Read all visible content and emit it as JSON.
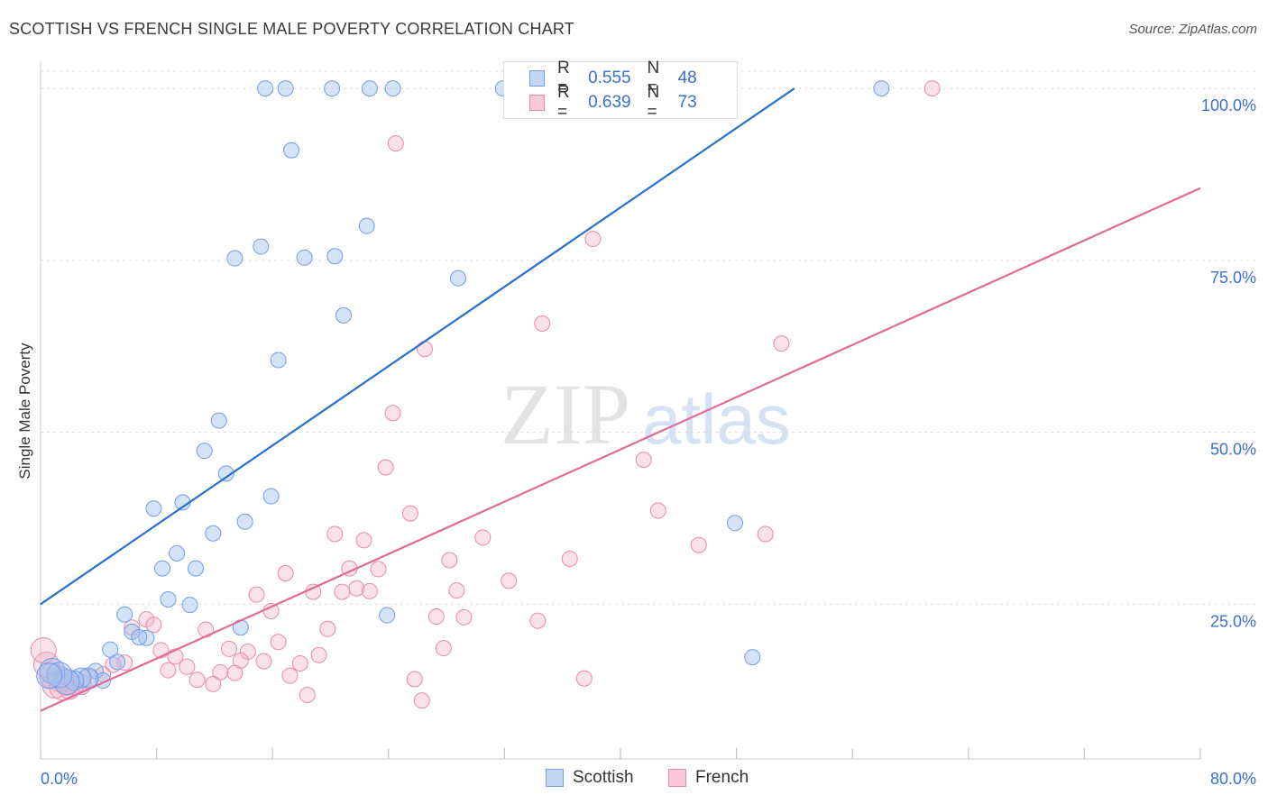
{
  "title": "SCOTTISH VS FRENCH SINGLE MALE POVERTY CORRELATION CHART",
  "source": "Source: ZipAtlas.com",
  "watermark": {
    "zip": "ZIP",
    "atlas": "atlas"
  },
  "legend": {
    "scottish": {
      "r_label": "R =",
      "r": "0.555",
      "n_label": "N =",
      "n": "48",
      "color": "#6f9ee8"
    },
    "french": {
      "r_label": "R =",
      "r": "0.639",
      "n_label": "N =",
      "n": "73",
      "color": "#e889a8"
    }
  },
  "bottom_legend": {
    "scottish": "Scottish",
    "french": "French"
  },
  "chart_data": {
    "type": "scatter",
    "title": "SCOTTISH VS FRENCH SINGLE MALE POVERTY CORRELATION CHART",
    "xlabel": "",
    "ylabel": "Single Male Poverty",
    "xlim": [
      0,
      80
    ],
    "ylim": [
      2.5,
      102.5
    ],
    "x_tick_labels": [
      "0.0%",
      "80.0%"
    ],
    "y_tick_labels": [
      "25.0%",
      "50.0%",
      "75.0%",
      "100.0%"
    ],
    "y_ticks": [
      25,
      50,
      75,
      100
    ],
    "grid": true,
    "legend_position": "top-center",
    "series": [
      {
        "name": "Scottish",
        "color": "#6f9ee8",
        "trend": {
          "x": [
            0,
            52
          ],
          "y": [
            25,
            100
          ]
        },
        "points": [
          {
            "x": 15.5,
            "y": 100
          },
          {
            "x": 16.9,
            "y": 100
          },
          {
            "x": 20.1,
            "y": 100
          },
          {
            "x": 22.7,
            "y": 100
          },
          {
            "x": 24.3,
            "y": 100
          },
          {
            "x": 31.9,
            "y": 100
          },
          {
            "x": 58.0,
            "y": 100
          },
          {
            "x": 17.3,
            "y": 91
          },
          {
            "x": 22.5,
            "y": 80
          },
          {
            "x": 15.2,
            "y": 77
          },
          {
            "x": 13.4,
            "y": 75.3
          },
          {
            "x": 18.2,
            "y": 75.4
          },
          {
            "x": 20.3,
            "y": 75.6
          },
          {
            "x": 28.8,
            "y": 72.4
          },
          {
            "x": 20.9,
            "y": 67
          },
          {
            "x": 16.4,
            "y": 60.5
          },
          {
            "x": 12.3,
            "y": 51.7
          },
          {
            "x": 11.3,
            "y": 47.3
          },
          {
            "x": 12.8,
            "y": 44
          },
          {
            "x": 9.8,
            "y": 39.8
          },
          {
            "x": 7.8,
            "y": 38.9
          },
          {
            "x": 15.9,
            "y": 40.7
          },
          {
            "x": 14.1,
            "y": 37
          },
          {
            "x": 11.9,
            "y": 35.3
          },
          {
            "x": 9.4,
            "y": 32.4
          },
          {
            "x": 8.4,
            "y": 30.2
          },
          {
            "x": 10.7,
            "y": 30.2
          },
          {
            "x": 8.8,
            "y": 25.7
          },
          {
            "x": 10.3,
            "y": 24.9
          },
          {
            "x": 5.8,
            "y": 23.5
          },
          {
            "x": 23.9,
            "y": 23.4
          },
          {
            "x": 13.8,
            "y": 21.6
          },
          {
            "x": 6.3,
            "y": 21
          },
          {
            "x": 7.3,
            "y": 20.1
          },
          {
            "x": 6.8,
            "y": 20.2
          },
          {
            "x": 4.8,
            "y": 18.4
          },
          {
            "x": 5.3,
            "y": 16.6
          },
          {
            "x": 47.9,
            "y": 36.8
          },
          {
            "x": 49.1,
            "y": 17.3
          },
          {
            "x": 3.8,
            "y": 15.3
          },
          {
            "x": 4.3,
            "y": 13.9
          },
          {
            "x": 3.3,
            "y": 14.3
          },
          {
            "x": 2.8,
            "y": 14.3
          },
          {
            "x": 2.3,
            "y": 13.9
          },
          {
            "x": 1.8,
            "y": 13.7
          },
          {
            "x": 0.8,
            "y": 15.3
          },
          {
            "x": 1.3,
            "y": 14.7
          },
          {
            "x": 0.6,
            "y": 14.6
          }
        ]
      },
      {
        "name": "French",
        "color": "#e889a8",
        "trend": {
          "x": [
            0,
            80
          ],
          "y": [
            9.5,
            85.5
          ]
        },
        "points": [
          {
            "x": 33.8,
            "y": 100
          },
          {
            "x": 61.5,
            "y": 100
          },
          {
            "x": 24.5,
            "y": 92
          },
          {
            "x": 38.1,
            "y": 78.1
          },
          {
            "x": 34.6,
            "y": 65.8
          },
          {
            "x": 51.1,
            "y": 62.9
          },
          {
            "x": 26.5,
            "y": 62.1
          },
          {
            "x": 24.3,
            "y": 52.8
          },
          {
            "x": 41.6,
            "y": 46
          },
          {
            "x": 23.8,
            "y": 44.9
          },
          {
            "x": 25.5,
            "y": 38.2
          },
          {
            "x": 42.6,
            "y": 38.6
          },
          {
            "x": 20.3,
            "y": 35.2
          },
          {
            "x": 22.3,
            "y": 34.3
          },
          {
            "x": 30.5,
            "y": 34.7
          },
          {
            "x": 45.4,
            "y": 33.6
          },
          {
            "x": 50.0,
            "y": 35.2
          },
          {
            "x": 28.2,
            "y": 31.4
          },
          {
            "x": 36.5,
            "y": 31.6
          },
          {
            "x": 21.3,
            "y": 30.2
          },
          {
            "x": 23.3,
            "y": 30.1
          },
          {
            "x": 16.9,
            "y": 29.5
          },
          {
            "x": 32.3,
            "y": 28.4
          },
          {
            "x": 18.8,
            "y": 26.8
          },
          {
            "x": 20.8,
            "y": 26.8
          },
          {
            "x": 21.8,
            "y": 27.3
          },
          {
            "x": 22.7,
            "y": 26.9
          },
          {
            "x": 28.7,
            "y": 27
          },
          {
            "x": 14.9,
            "y": 26.4
          },
          {
            "x": 15.9,
            "y": 24
          },
          {
            "x": 27.3,
            "y": 23.2
          },
          {
            "x": 29.2,
            "y": 23.1
          },
          {
            "x": 34.3,
            "y": 22.6
          },
          {
            "x": 7.3,
            "y": 22.8
          },
          {
            "x": 7.8,
            "y": 22
          },
          {
            "x": 11.4,
            "y": 21.3
          },
          {
            "x": 19.8,
            "y": 21.4
          },
          {
            "x": 6.3,
            "y": 21.6
          },
          {
            "x": 16.4,
            "y": 19.5
          },
          {
            "x": 13.0,
            "y": 18.5
          },
          {
            "x": 14.3,
            "y": 18.1
          },
          {
            "x": 8.3,
            "y": 18.3
          },
          {
            "x": 27.8,
            "y": 18.6
          },
          {
            "x": 19.2,
            "y": 17.6
          },
          {
            "x": 9.3,
            "y": 17.4
          },
          {
            "x": 13.8,
            "y": 16.8
          },
          {
            "x": 15.4,
            "y": 16.7
          },
          {
            "x": 17.9,
            "y": 16.4
          },
          {
            "x": 5.8,
            "y": 16.5
          },
          {
            "x": 5.0,
            "y": 16.2
          },
          {
            "x": 10.1,
            "y": 15.9
          },
          {
            "x": 8.8,
            "y": 15.4
          },
          {
            "x": 12.4,
            "y": 15.1
          },
          {
            "x": 13.4,
            "y": 15
          },
          {
            "x": 17.2,
            "y": 14.6
          },
          {
            "x": 25.8,
            "y": 14.1
          },
          {
            "x": 37.5,
            "y": 14.2
          },
          {
            "x": 10.8,
            "y": 14
          },
          {
            "x": 11.9,
            "y": 13.4
          },
          {
            "x": 18.4,
            "y": 11.8
          },
          {
            "x": 26.3,
            "y": 11
          },
          {
            "x": 4.3,
            "y": 14.8
          },
          {
            "x": 3.3,
            "y": 14.1
          },
          {
            "x": 2.8,
            "y": 13.3
          },
          {
            "x": 2.3,
            "y": 13.3
          },
          {
            "x": 1.8,
            "y": 13.6
          },
          {
            "x": 1.3,
            "y": 14.1
          },
          {
            "x": 0.8,
            "y": 14.6
          },
          {
            "x": 0.4,
            "y": 16.2
          },
          {
            "x": 0.2,
            "y": 18.3
          },
          {
            "x": 1.0,
            "y": 13.2
          },
          {
            "x": 2.0,
            "y": 12.6
          },
          {
            "x": 1.5,
            "y": 12.9
          }
        ]
      }
    ]
  }
}
